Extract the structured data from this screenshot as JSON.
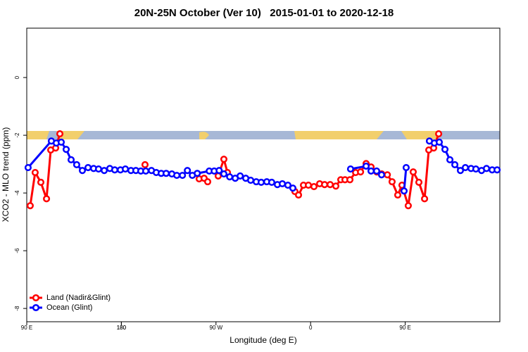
{
  "chart_data": {
    "type": "line",
    "title": "20N-25N October (Ver 10)   2015-01-01 to 2020-12-18",
    "x_label": "Longitude (deg E)",
    "y_label": "XCO2 - MLO trend (ppm)",
    "xlim": [
      90,
      540
    ],
    "xticks": [
      {
        "value": 90,
        "label": "90 E"
      },
      180,
      {
        "value": 270,
        "label": "90 W"
      },
      {
        "value": 360,
        "label": "0"
      },
      {
        "value": 450,
        "label": "90 E"
      },
      180.0001
    ],
    "ylim": [
      -8.46,
      1.71
    ],
    "yticks": [
      0,
      -2,
      -4,
      -6,
      -8
    ],
    "grid": false,
    "legend": "bottom-left",
    "series": [
      {
        "name": "Land (Nadir&Glint)",
        "color": "#ff0000",
        "x": [
          93.3,
          98,
          103.4,
          108.8,
          112.8,
          117.5,
          121.5,
          null,
          202.5,
          null,
          254,
          258.7,
          262.1,
          null,
          272.1,
          277.5,
          280.9,
          null,
          345.1,
          348.5,
          353.2,
          357.9,
          363.2,
          368.6,
          373.3,
          378.6,
          384,
          388.7,
          392.7,
          397.4,
          402.8,
          407.5,
          412.8,
          417.5,
          422.9,
          427.6,
          433,
          437.5,
          442.9,
          446.9,
          452.9,
          457.6,
          463,
          468.4,
          472.4,
          477.1,
          481.8
        ],
        "values": [
          -4.44,
          -3.29,
          -3.63,
          -4.2,
          -2.51,
          -2.44,
          -1.95,
          null,
          -3.02,
          null,
          -3.51,
          -3.49,
          -3.61,
          null,
          -3.41,
          -2.83,
          -3.29,
          null,
          -3.95,
          -4.07,
          -3.73,
          -3.73,
          -3.78,
          -3.68,
          -3.71,
          -3.71,
          -3.76,
          -3.54,
          -3.54,
          -3.54,
          -3.29,
          -3.27,
          -2.98,
          -3.1,
          -3.27,
          -3.34,
          -3.37,
          -3.61,
          -4.07,
          -3.73,
          -4.44,
          -3.27,
          -3.63,
          -4.2,
          -2.51,
          -2.44,
          -1.95
        ]
      },
      {
        "name": "Ocean (Glint)",
        "color": "#0000ff",
        "x": [
          91.3,
          113.4,
          118.1,
          122.8,
          127.5,
          132.2,
          137.5,
          142.9,
          148.3,
          153.6,
          158.3,
          163.7,
          169,
          173.7,
          179.1,
          183.8,
          189.1,
          193.8,
          198.5,
          203.2,
          208.6,
          213.2,
          217.9,
          222.6,
          228,
          232.7,
          238.1,
          242.8,
          247.5,
          252.2,
          263.6,
          268.3,
          273,
          277.5,
          283,
          288.3,
          293,
          298.3,
          303,
          308.3,
          313,
          318.3,
          323,
          328.4,
          333.1,
          338.4,
          343.1,
          null,
          398,
          412.8,
          417.5,
          422.8,
          427.5,
          null,
          448.9,
          450.9,
          null,
          473,
          477.7,
          482.4,
          487.8,
          492.5,
          497.2,
          502.5,
          507.2,
          512.6,
          517.2,
          522.6,
          527.3,
          532.7,
          537.4
        ],
        "values": [
          -3.12,
          -2.2,
          -2.27,
          -2.24,
          -2.49,
          -2.85,
          -3.02,
          -3.22,
          -3.12,
          -3.15,
          -3.17,
          -3.22,
          -3.15,
          -3.2,
          -3.2,
          -3.17,
          -3.22,
          -3.22,
          -3.24,
          -3.24,
          -3.22,
          -3.29,
          -3.32,
          -3.32,
          -3.34,
          -3.39,
          -3.39,
          -3.22,
          -3.39,
          -3.32,
          -3.24,
          -3.24,
          -3.22,
          -3.34,
          -3.44,
          -3.49,
          -3.41,
          -3.49,
          -3.56,
          -3.61,
          -3.63,
          -3.61,
          -3.63,
          -3.71,
          -3.68,
          -3.73,
          -3.83,
          null,
          -3.17,
          -3.07,
          -3.24,
          -3.24,
          -3.37,
          null,
          -3.93,
          -3.12,
          null,
          -2.2,
          -2.27,
          -2.24,
          -2.49,
          -2.85,
          -3.02,
          -3.22,
          -3.12,
          -3.15,
          -3.17,
          -3.22,
          -3.15,
          -3.2,
          -3.2
        ]
      }
    ]
  }
}
